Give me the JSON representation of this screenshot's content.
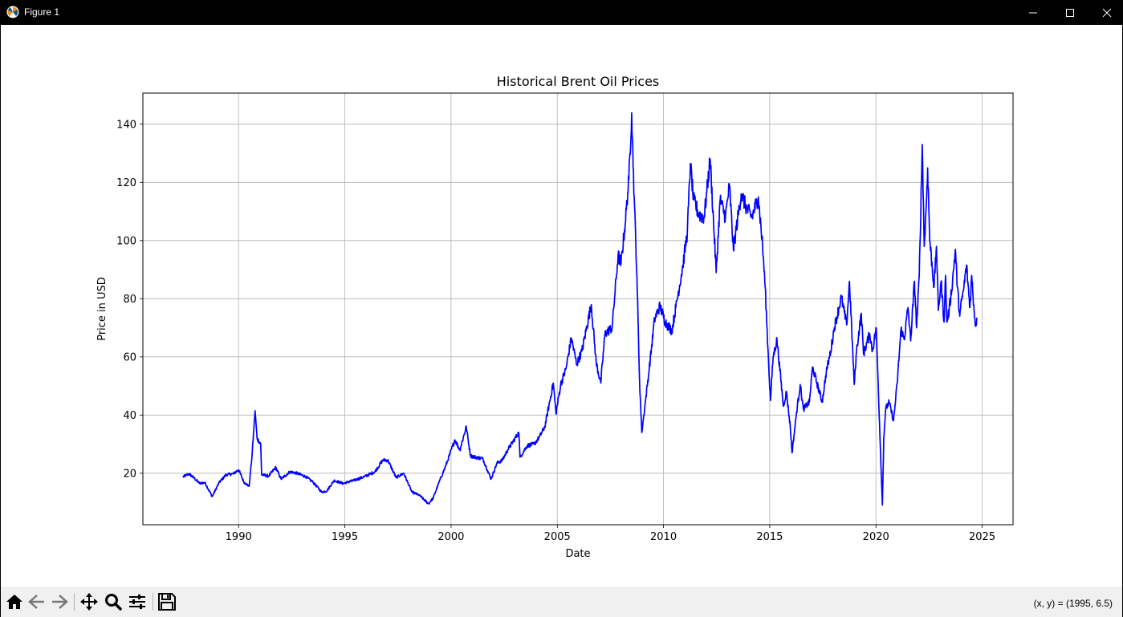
{
  "window": {
    "title": "Figure 1",
    "controls": [
      "minimize",
      "maximize",
      "close"
    ]
  },
  "toolbar": {
    "buttons": [
      {
        "name": "home",
        "icon": "home-icon"
      },
      {
        "name": "back",
        "icon": "arrow-left-icon"
      },
      {
        "name": "forward",
        "icon": "arrow-right-icon"
      },
      {
        "name": "pan",
        "icon": "move-icon"
      },
      {
        "name": "zoom",
        "icon": "magnifier-icon"
      },
      {
        "name": "configure-subplots",
        "icon": "sliders-icon"
      },
      {
        "name": "save",
        "icon": "floppy-disk-icon"
      }
    ],
    "coordinates": "(x, y) = (1995, 6.5)"
  },
  "chart_data": {
    "type": "line",
    "title": "Historical Brent Oil Prices",
    "xlabel": "Date",
    "ylabel": "Price in USD",
    "xlim": [
      "1985-07-01",
      "2026-06-15"
    ],
    "ylim": [
      2.3,
      150.7
    ],
    "xticks": [
      "1990",
      "1995",
      "2000",
      "2005",
      "2010",
      "2015",
      "2020",
      "2025"
    ],
    "yticks": [
      20,
      40,
      60,
      80,
      100,
      120,
      140
    ],
    "grid": true,
    "line_color": "#0000ff",
    "series": [
      {
        "x": [
          "1987-05-20",
          "1987-09-01",
          "1987-12-01",
          "1988-03-01",
          "1988-06-01",
          "1988-10-05",
          "1989-02-01",
          "1989-06-01",
          "1989-10-01",
          "1990-01-02",
          "1990-04-01",
          "1990-07-01",
          "1990-08-20",
          "1990-10-11",
          "1990-11-15",
          "1991-01-16",
          "1991-02-01",
          "1991-06-01",
          "1991-10-01",
          "1992-01-01",
          "1992-06-01",
          "1992-10-01",
          "1993-03-01",
          "1993-07-01",
          "1993-12-01",
          "1994-03-01",
          "1994-07-01",
          "1994-12-01",
          "1995-06-01",
          "1995-12-01",
          "1996-06-01",
          "1996-10-15",
          "1997-01-10",
          "1997-06-01",
          "1997-10-10",
          "1998-03-01",
          "1998-07-01",
          "1998-12-10",
          "1999-03-01",
          "1999-06-01",
          "1999-10-01",
          "2000-03-07",
          "2000-06-01",
          "2000-09-20",
          "2000-12-01",
          "2001-03-01",
          "2001-07-01",
          "2001-09-20",
          "2001-11-20",
          "2002-03-01",
          "2002-06-01",
          "2002-09-01",
          "2003-03-11",
          "2003-04-01",
          "2003-08-01",
          "2003-12-01",
          "2004-03-01",
          "2004-06-01",
          "2004-10-25",
          "2004-12-10",
          "2005-03-01",
          "2005-06-01",
          "2005-08-30",
          "2005-12-01",
          "2006-03-01",
          "2006-08-08",
          "2006-11-01",
          "2007-01-18",
          "2007-04-01",
          "2007-08-01",
          "2007-11-12",
          "2008-01-01",
          "2008-03-14",
          "2008-05-15",
          "2008-07-03",
          "2008-08-15",
          "2008-10-01",
          "2008-11-15",
          "2008-12-24",
          "2009-02-15",
          "2009-05-01",
          "2009-08-01",
          "2009-11-01",
          "2010-02-01",
          "2010-05-25",
          "2010-08-01",
          "2010-12-01",
          "2011-02-15",
          "2011-04-08",
          "2011-06-01",
          "2011-09-01",
          "2011-12-01",
          "2012-03-13",
          "2012-06-25",
          "2012-09-01",
          "2012-12-01",
          "2013-02-08",
          "2013-04-17",
          "2013-08-28",
          "2013-12-01",
          "2014-03-01",
          "2014-06-19",
          "2014-09-01",
          "2014-10-15",
          "2014-12-01",
          "2015-01-13",
          "2015-03-01",
          "2015-05-06",
          "2015-08-24",
          "2015-10-15",
          "2015-12-20",
          "2016-01-20",
          "2016-04-01",
          "2016-06-08",
          "2016-08-01",
          "2016-11-14",
          "2017-01-06",
          "2017-06-21",
          "2017-09-01",
          "2017-11-15",
          "2018-01-15",
          "2018-05-17",
          "2018-08-15",
          "2018-10-03",
          "2018-12-24",
          "2019-02-01",
          "2019-04-25",
          "2019-06-01",
          "2019-09-16",
          "2019-11-01",
          "2020-01-06",
          "2020-02-01",
          "2020-03-15",
          "2020-04-21",
          "2020-05-15",
          "2020-06-15",
          "2020-08-15",
          "2020-10-30",
          "2021-01-01",
          "2021-03-08",
          "2021-05-01",
          "2021-07-06",
          "2021-08-20",
          "2021-10-25",
          "2021-12-01",
          "2022-01-15",
          "2022-03-08",
          "2022-04-11",
          "2022-05-15",
          "2022-06-08",
          "2022-07-15",
          "2022-09-26",
          "2022-11-07",
          "2022-12-09",
          "2023-01-25",
          "2023-03-17",
          "2023-04-12",
          "2023-05-04",
          "2023-06-12",
          "2023-08-10",
          "2023-09-27",
          "2023-11-01",
          "2023-12-12",
          "2024-01-15",
          "2024-02-15",
          "2024-04-05",
          "2024-06-04",
          "2024-07-05",
          "2024-08-15",
          "2024-09-10",
          "2024-09-30"
        ],
        "y": [
          18.7,
          19.8,
          18.3,
          16.5,
          16.8,
          12.0,
          16.8,
          19.5,
          19.8,
          21.2,
          17.0,
          15.5,
          26.0,
          41.5,
          32.0,
          30.0,
          19.5,
          19.0,
          22.0,
          18.0,
          20.5,
          20.0,
          18.8,
          17.0,
          13.5,
          14.0,
          17.5,
          16.5,
          17.5,
          18.8,
          20.5,
          24.5,
          24.5,
          18.5,
          20.0,
          13.5,
          12.5,
          9.5,
          11.5,
          16.5,
          22.5,
          31.5,
          28.0,
          36.0,
          26.0,
          25.5,
          25.0,
          21.0,
          18.0,
          23.5,
          24.5,
          28.0,
          34.0,
          25.5,
          29.5,
          30.0,
          32.5,
          36.0,
          51.0,
          40.5,
          50.5,
          56.0,
          66.5,
          57.5,
          62.0,
          78.0,
          58.0,
          51.0,
          68.0,
          70.0,
          95.0,
          92.0,
          106.0,
          121.0,
          143.9,
          115.0,
          88.0,
          52.0,
          34.0,
          43.0,
          56.0,
          73.0,
          77.5,
          72.0,
          69.0,
          77.0,
          91.5,
          103.0,
          126.5,
          114.0,
          109.0,
          108.0,
          128.0,
          89.0,
          114.0,
          108.0,
          119.0,
          97.0,
          116.0,
          111.0,
          108.0,
          115.0,
          98.0,
          84.0,
          63.0,
          45.0,
          60.0,
          66.0,
          43.0,
          48.0,
          36.0,
          27.0,
          40.0,
          50.5,
          42.0,
          44.5,
          56.5,
          44.5,
          55.0,
          62.0,
          70.0,
          80.5,
          71.0,
          86.0,
          50.5,
          62.0,
          75.0,
          61.0,
          68.0,
          62.0,
          70.0,
          55.0,
          30.0,
          9.1,
          32.0,
          42.0,
          44.5,
          38.0,
          51.0,
          69.5,
          66.0,
          77.0,
          65.5,
          86.0,
          70.0,
          88.0,
          133.0,
          98.0,
          112.0,
          125.0,
          100.0,
          84.0,
          98.0,
          76.0,
          86.0,
          72.0,
          88.0,
          72.0,
          76.0,
          86.0,
          97.0,
          84.0,
          74.0,
          79.5,
          83.0,
          91.5,
          77.0,
          88.0,
          76.0,
          70.5,
          73.5
        ]
      }
    ]
  }
}
